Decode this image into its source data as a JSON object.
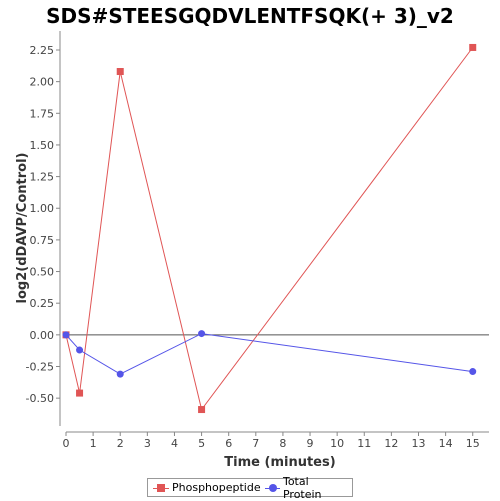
{
  "chart_data": {
    "type": "line",
    "title": "SDS#STEESGQDVLENTFSQK(+ 3)_v2",
    "xlabel": "Time (minutes)",
    "ylabel": "log2(dDAVP/Control)",
    "xlim": [
      0,
      15.6
    ],
    "ylim": [
      -0.72,
      2.4
    ],
    "x_ticks": [
      0,
      1,
      2,
      3,
      4,
      5,
      6,
      7,
      8,
      9,
      10,
      11,
      12,
      13,
      14,
      15
    ],
    "y_ticks": [
      -0.5,
      -0.25,
      0.0,
      0.25,
      0.5,
      0.75,
      1.0,
      1.25,
      1.5,
      1.75,
      2.0,
      2.25
    ],
    "y_tick_labels": [
      "-0.50",
      "-0.25",
      "0.00",
      "0.25",
      "0.50",
      "0.75",
      "1.00",
      "1.25",
      "1.50",
      "1.75",
      "2.00",
      "2.25"
    ],
    "grid": false,
    "zero_line": true,
    "legend_position": "bottom",
    "series": [
      {
        "name": "Phosphopeptide",
        "color": "#e05555",
        "marker": "square",
        "x": [
          0,
          0.5,
          2,
          5,
          15
        ],
        "values": [
          0.0,
          -0.46,
          2.08,
          -0.59,
          2.27
        ]
      },
      {
        "name": "Total Protein",
        "color": "#5555e8",
        "marker": "circle",
        "x": [
          0,
          0.5,
          2,
          5,
          15
        ],
        "values": [
          0.0,
          -0.12,
          -0.31,
          0.01,
          -0.29
        ]
      }
    ]
  }
}
